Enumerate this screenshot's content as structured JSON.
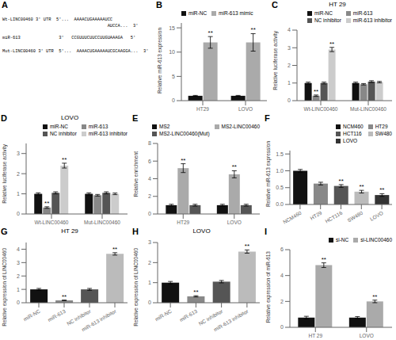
{
  "chart_data": [
    {
      "type": "text",
      "annotations": [
        {
          "text": "A"
        },
        {
          "text": "Wt-LINC00460 3' UTR  5'...  AAAACUGAAAAAUCC"
        },
        {
          "text": "                                         AUCCA...  3'"
        },
        {
          "text": "miR-613               3'   CCGUUUCUUCCUUGUAAAGA   5'"
        },
        {
          "text": "Mut-LINC00460 3' UTR  5'...  AAAACUGAAAAAUCGCAAGGA...  3'"
        }
      ]
    },
    {
      "type": "bar",
      "ylabel": "Relative miR-613 expression",
      "categories": [
        "HT29",
        "LOVO"
      ],
      "series": [
        {
          "name": "miR-NC",
          "color": "#111111",
          "values": [
            1.0,
            1.0
          ],
          "errors": [
            0.08,
            0.08
          ]
        },
        {
          "name": "miR-613 mimic",
          "color": "#aaaaaa",
          "values": [
            12.0,
            12.0
          ],
          "errors": [
            1.2,
            1.8
          ]
        }
      ],
      "ylim": [
        0,
        16
      ],
      "yticks": [
        0,
        5,
        10,
        15
      ],
      "legend": "upper left",
      "grid": false,
      "annotations": [
        {
          "text": "B"
        },
        {
          "text": "**",
          "series": "miR-613 mimic",
          "category": "HT29"
        },
        {
          "text": "**",
          "series": "miR-613 mimic",
          "category": "LOVO"
        }
      ]
    },
    {
      "type": "bar",
      "title": "HT 29",
      "ylabel": "Relative luciferase activity",
      "categories": [
        "Wt-LINC00460",
        "Mut-LINC00460"
      ],
      "series": [
        {
          "name": "miR-NC",
          "color": "#111111",
          "values": [
            1.0,
            1.0
          ],
          "errors": [
            0.05,
            0.05
          ]
        },
        {
          "name": "miR-613",
          "color": "#888888",
          "values": [
            0.28,
            0.93
          ],
          "errors": [
            0.04,
            0.04
          ]
        },
        {
          "name": "NC inhibitor",
          "color": "#555555",
          "values": [
            1.0,
            1.08
          ],
          "errors": [
            0.05,
            0.05
          ]
        },
        {
          "name": "miR-613 inhibitor",
          "color": "#cccccc",
          "values": [
            2.9,
            1.05
          ],
          "errors": [
            0.12,
            0.04
          ]
        }
      ],
      "ylim": [
        0,
        4
      ],
      "yticks": [
        0,
        1,
        2,
        3,
        4
      ],
      "legend": "upper right",
      "grid": false,
      "annotations": [
        {
          "text": "C"
        },
        {
          "text": "**",
          "series": "miR-613",
          "category": "Wt-LINC00460"
        },
        {
          "text": "**",
          "series": "miR-613 inhibitor",
          "category": "Wt-LINC00460"
        }
      ]
    },
    {
      "type": "bar",
      "title": "LOVO",
      "ylabel": "Relative luciferase activity",
      "categories": [
        "Wt-LINC00460",
        "Mut-LINC00460"
      ],
      "series": [
        {
          "name": "miR-NC",
          "color": "#111111",
          "values": [
            1.0,
            1.0
          ],
          "errors": [
            0.05,
            0.05
          ]
        },
        {
          "name": "miR-613",
          "color": "#888888",
          "values": [
            0.32,
            0.93
          ],
          "errors": [
            0.04,
            0.04
          ]
        },
        {
          "name": "NC inhibitor",
          "color": "#555555",
          "values": [
            1.05,
            1.05
          ],
          "errors": [
            0.05,
            0.05
          ]
        },
        {
          "name": "miR-613 inhibitor",
          "color": "#cccccc",
          "values": [
            2.4,
            1.0
          ],
          "errors": [
            0.12,
            0.04
          ]
        }
      ],
      "ylim": [
        0,
        3.5
      ],
      "yticks": [
        0,
        1,
        2,
        3
      ],
      "legend": "upper right",
      "grid": false,
      "annotations": [
        {
          "text": "D"
        },
        {
          "text": "**",
          "series": "miR-613",
          "category": "Wt-LINC00460"
        },
        {
          "text": "**",
          "series": "miR-613 inhibitor",
          "category": "Wt-LINC00460"
        }
      ]
    },
    {
      "type": "bar",
      "ylabel": "Relative enrichment",
      "categories": [
        "HT29",
        "LOVO"
      ],
      "series": [
        {
          "name": "MS2",
          "color": "#111111",
          "values": [
            1.0,
            1.0
          ],
          "errors": [
            0.1,
            0.1
          ]
        },
        {
          "name": "MS2-LINC00460",
          "color": "#aaaaaa",
          "values": [
            5.2,
            4.5
          ],
          "errors": [
            0.5,
            0.4
          ]
        },
        {
          "name": "MS2-LINC00460(Mut)",
          "color": "#555555",
          "values": [
            1.0,
            1.0
          ],
          "errors": [
            0.1,
            0.1
          ]
        }
      ],
      "ylim": [
        0,
        8
      ],
      "yticks": [
        0,
        2,
        4,
        6,
        8
      ],
      "legend": "upper right",
      "grid": false,
      "annotations": [
        {
          "text": "E"
        },
        {
          "text": "**",
          "series": "MS2-LINC00460",
          "category": "HT29"
        },
        {
          "text": "**",
          "series": "MS2-LINC00460",
          "category": "LOVO"
        }
      ]
    },
    {
      "type": "bar",
      "ylabel": "Relative miR-613 expression",
      "categories": [
        "NCM460",
        "HT29",
        "HCT116",
        "SW480",
        "LOVO"
      ],
      "values": [
        1.0,
        0.62,
        0.55,
        0.38,
        0.28
      ],
      "colors": [
        "#111111",
        "#888888",
        "#555555",
        "#bbbbbb",
        "#333333"
      ],
      "errors": [
        0.04,
        0.04,
        0.04,
        0.04,
        0.04
      ],
      "ylim": [
        0,
        1.6
      ],
      "yticks": [
        {
          "value": 0.0,
          "label": "0.0"
        },
        {
          "value": 0.5,
          "label": "0.5"
        },
        {
          "value": 1.0,
          "label": "1.0"
        },
        {
          "value": 1.5,
          "label": "1.5"
        }
      ],
      "legend": "upper right",
      "grid": false,
      "annotations": [
        {
          "text": "F"
        },
        {
          "text": "**",
          "category": "HCT116"
        },
        {
          "text": "**",
          "category": "SW480"
        },
        {
          "text": "**",
          "category": "LOVO"
        }
      ]
    },
    {
      "type": "bar",
      "title": "HT 29",
      "ylabel": "Relative expression of LINC00460",
      "categories": [
        "miR-NC",
        "miR-613",
        "NC inhibitor",
        "miR-613 inhibitor"
      ],
      "values": [
        1.0,
        0.18,
        1.0,
        3.65
      ],
      "colors": [
        "#111111",
        "#888888",
        "#555555",
        "#bbbbbb"
      ],
      "errors": [
        0.07,
        0.02,
        0.07,
        0.09
      ],
      "ylim": [
        0,
        4.5
      ],
      "yticks": [
        0,
        1,
        2,
        3,
        4
      ],
      "grid": false,
      "annotations": [
        {
          "text": "G"
        },
        {
          "text": "**",
          "category": "miR-613"
        },
        {
          "text": "**",
          "category": "miR-613 inhibitor"
        }
      ]
    },
    {
      "type": "bar",
      "title": "LOVO",
      "ylabel": "Relative expression of LINC00460",
      "categories": [
        "miR-NC",
        "miR-613",
        "NC inhibitor",
        "miR-613 inhibitor"
      ],
      "values": [
        1.0,
        0.32,
        1.05,
        2.55
      ],
      "colors": [
        "#111111",
        "#888888",
        "#555555",
        "#bbbbbb"
      ],
      "errors": [
        0.06,
        0.03,
        0.06,
        0.08
      ],
      "ylim": [
        0,
        3.0
      ],
      "yticks": [
        0,
        1,
        2,
        3
      ],
      "grid": false,
      "annotations": [
        {
          "text": "H"
        },
        {
          "text": "**",
          "category": "miR-613"
        },
        {
          "text": "**",
          "category": "miR-613 inhibitor"
        }
      ]
    },
    {
      "type": "bar",
      "ylabel": "Relative expression of miR-613",
      "categories": [
        "HT 29",
        "LOVO"
      ],
      "series": [
        {
          "name": "si-NC",
          "color": "#111111",
          "values": [
            0.75,
            0.75
          ],
          "errors": [
            0.1,
            0.08
          ]
        },
        {
          "name": "si-LINC00460",
          "color": "#aaaaaa",
          "values": [
            4.8,
            2.0
          ],
          "errors": [
            0.18,
            0.1
          ]
        }
      ],
      "ylim": [
        0,
        6
      ],
      "yticks": [
        0,
        2,
        4,
        6
      ],
      "legend": "upper right",
      "grid": false,
      "annotations": [
        {
          "text": "I"
        },
        {
          "text": "**",
          "series": "si-LINC00460",
          "category": "HT 29"
        },
        {
          "text": "**",
          "series": "si-LINC00460",
          "category": "LOVO"
        }
      ]
    }
  ]
}
